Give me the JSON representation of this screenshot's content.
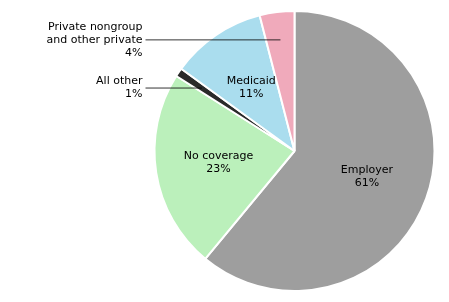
{
  "chart_data": {
    "type": "pie",
    "categories": [
      "Employer\n61%",
      "No coverage\n23%",
      "All other\n1%",
      "Medicaid\n11%",
      "Private nongroup\nand other private\n4%"
    ],
    "values": [
      61,
      23,
      1,
      11,
      4
    ],
    "colors": [
      "#9e9e9e",
      "#bbf0bb",
      "#2a2a2a",
      "#aaddee",
      "#f0aabb"
    ]
  }
}
